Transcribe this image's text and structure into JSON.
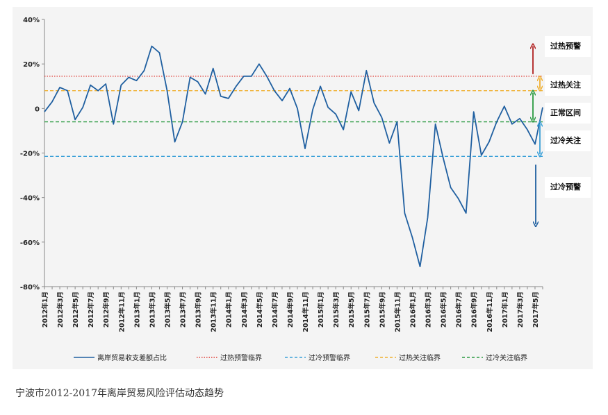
{
  "caption": "宁波市2012-2017年离岸贸易风险评估动态趋势",
  "chart_data": {
    "type": "line",
    "title": "",
    "xlabel": "",
    "ylabel": "",
    "ylim": [
      -80,
      40
    ],
    "y_ticks": [
      "40%",
      "20%",
      "0",
      "-20%",
      "-40%",
      "-60%",
      "-80%"
    ],
    "y_tick_values": [
      40,
      20,
      0,
      -20,
      -40,
      -60,
      -80
    ],
    "x_tick_labels": [
      "2012年1月",
      "2012年3月",
      "2012年5月",
      "2012年7月",
      "2012年9月",
      "2012年11月",
      "2013年1月",
      "2013年3月",
      "2013年5月",
      "2013年7月",
      "2013年9月",
      "2013年11月",
      "2014年1月",
      "2014年3月",
      "2014年5月",
      "2014年7月",
      "2014年9月",
      "2014年11月",
      "2015年1月",
      "2015年3月",
      "2015年5月",
      "2015年7月",
      "2015年9月",
      "2015年11月",
      "2016年1月",
      "2016年3月",
      "2016年5月",
      "2016年7月",
      "2016年9月",
      "2016年11月",
      "2017年1月",
      "2017年3月",
      "2017年5月"
    ],
    "series": [
      {
        "name": "离岸贸易收支差额占比",
        "color": "#1f5fa0",
        "values": [
          -1.5,
          3,
          9.5,
          8,
          -5,
          0.5,
          10.5,
          8,
          11,
          -7,
          10.5,
          14,
          12.5,
          17,
          28,
          25,
          8,
          -15,
          -6,
          14,
          12,
          6.5,
          18,
          5.5,
          4.5,
          10,
          14.5,
          14.5,
          20,
          14.5,
          8,
          3.5,
          9,
          0,
          -18,
          -0.5,
          10,
          0.5,
          -2.5,
          -9.5,
          7.5,
          -1,
          17,
          2.5,
          -4,
          -15.5,
          -6,
          -47,
          -58,
          -71,
          -49,
          -7,
          -22,
          -35.5,
          -40.5,
          -47,
          -1.5,
          -21,
          -15,
          -6,
          1,
          -7,
          -4.5,
          -9.5,
          -16,
          0.5
        ]
      }
    ],
    "thresholds": [
      {
        "name": "过热预警临界",
        "value": 14.5,
        "color": "#e0403a",
        "style": "dotted"
      },
      {
        "name": "过冷预警临界",
        "value": -21.5,
        "color": "#3aa0d8",
        "style": "dashed"
      },
      {
        "name": "过热关注临界",
        "value": 8,
        "color": "#f0b030",
        "style": "dashed"
      },
      {
        "name": "过冷关注临界",
        "value": -6,
        "color": "#2a9a40",
        "style": "dashed"
      }
    ],
    "grid": false,
    "legend_position": "bottom"
  },
  "zones": [
    {
      "label": "过热预警",
      "color": "#b02020"
    },
    {
      "label": "过热关注",
      "color": "#f0b030"
    },
    {
      "label": "正常区间",
      "color": "#2a9a40"
    },
    {
      "label": "过冷关注",
      "color": "#3aa0d8"
    },
    {
      "label": "过冷预警",
      "color": "#1f5fa0"
    }
  ]
}
